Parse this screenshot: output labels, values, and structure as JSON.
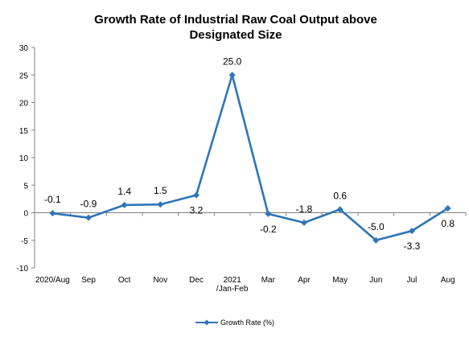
{
  "chart_data": {
    "type": "line",
    "title_lines": [
      "Growth Rate of Industrial Raw Coal Output above",
      "Designated Size"
    ],
    "xlabel": "",
    "ylabel": "",
    "categories": [
      [
        "2020/Aug"
      ],
      [
        "Sep"
      ],
      [
        "Oct"
      ],
      [
        "Nov"
      ],
      [
        "Dec"
      ],
      [
        "2021",
        "/Jan-Feb"
      ],
      [
        "Mar"
      ],
      [
        "Apr"
      ],
      [
        "May"
      ],
      [
        "Jun"
      ],
      [
        "Jul"
      ],
      [
        "Aug"
      ]
    ],
    "series": [
      {
        "name": "Growth Rate (%)",
        "color": "#2E75B6",
        "values": [
          -0.1,
          -0.9,
          1.4,
          1.5,
          3.2,
          25.0,
          -0.2,
          -1.8,
          0.6,
          -5.0,
          -3.3,
          0.8
        ],
        "value_labels": [
          "-0.1",
          "-0.9",
          "1.4",
          "1.5",
          "3.2",
          "25.0",
          "-0.2",
          "-1.8",
          "0.6",
          "-5.0",
          "-3.3",
          "0.8"
        ]
      }
    ],
    "ylim": [
      -10,
      30
    ],
    "yticks": [
      -10,
      -5,
      0,
      5,
      10,
      15,
      20,
      25,
      30
    ],
    "grid": false,
    "legend_position": "bottom",
    "marker": "diamond"
  }
}
